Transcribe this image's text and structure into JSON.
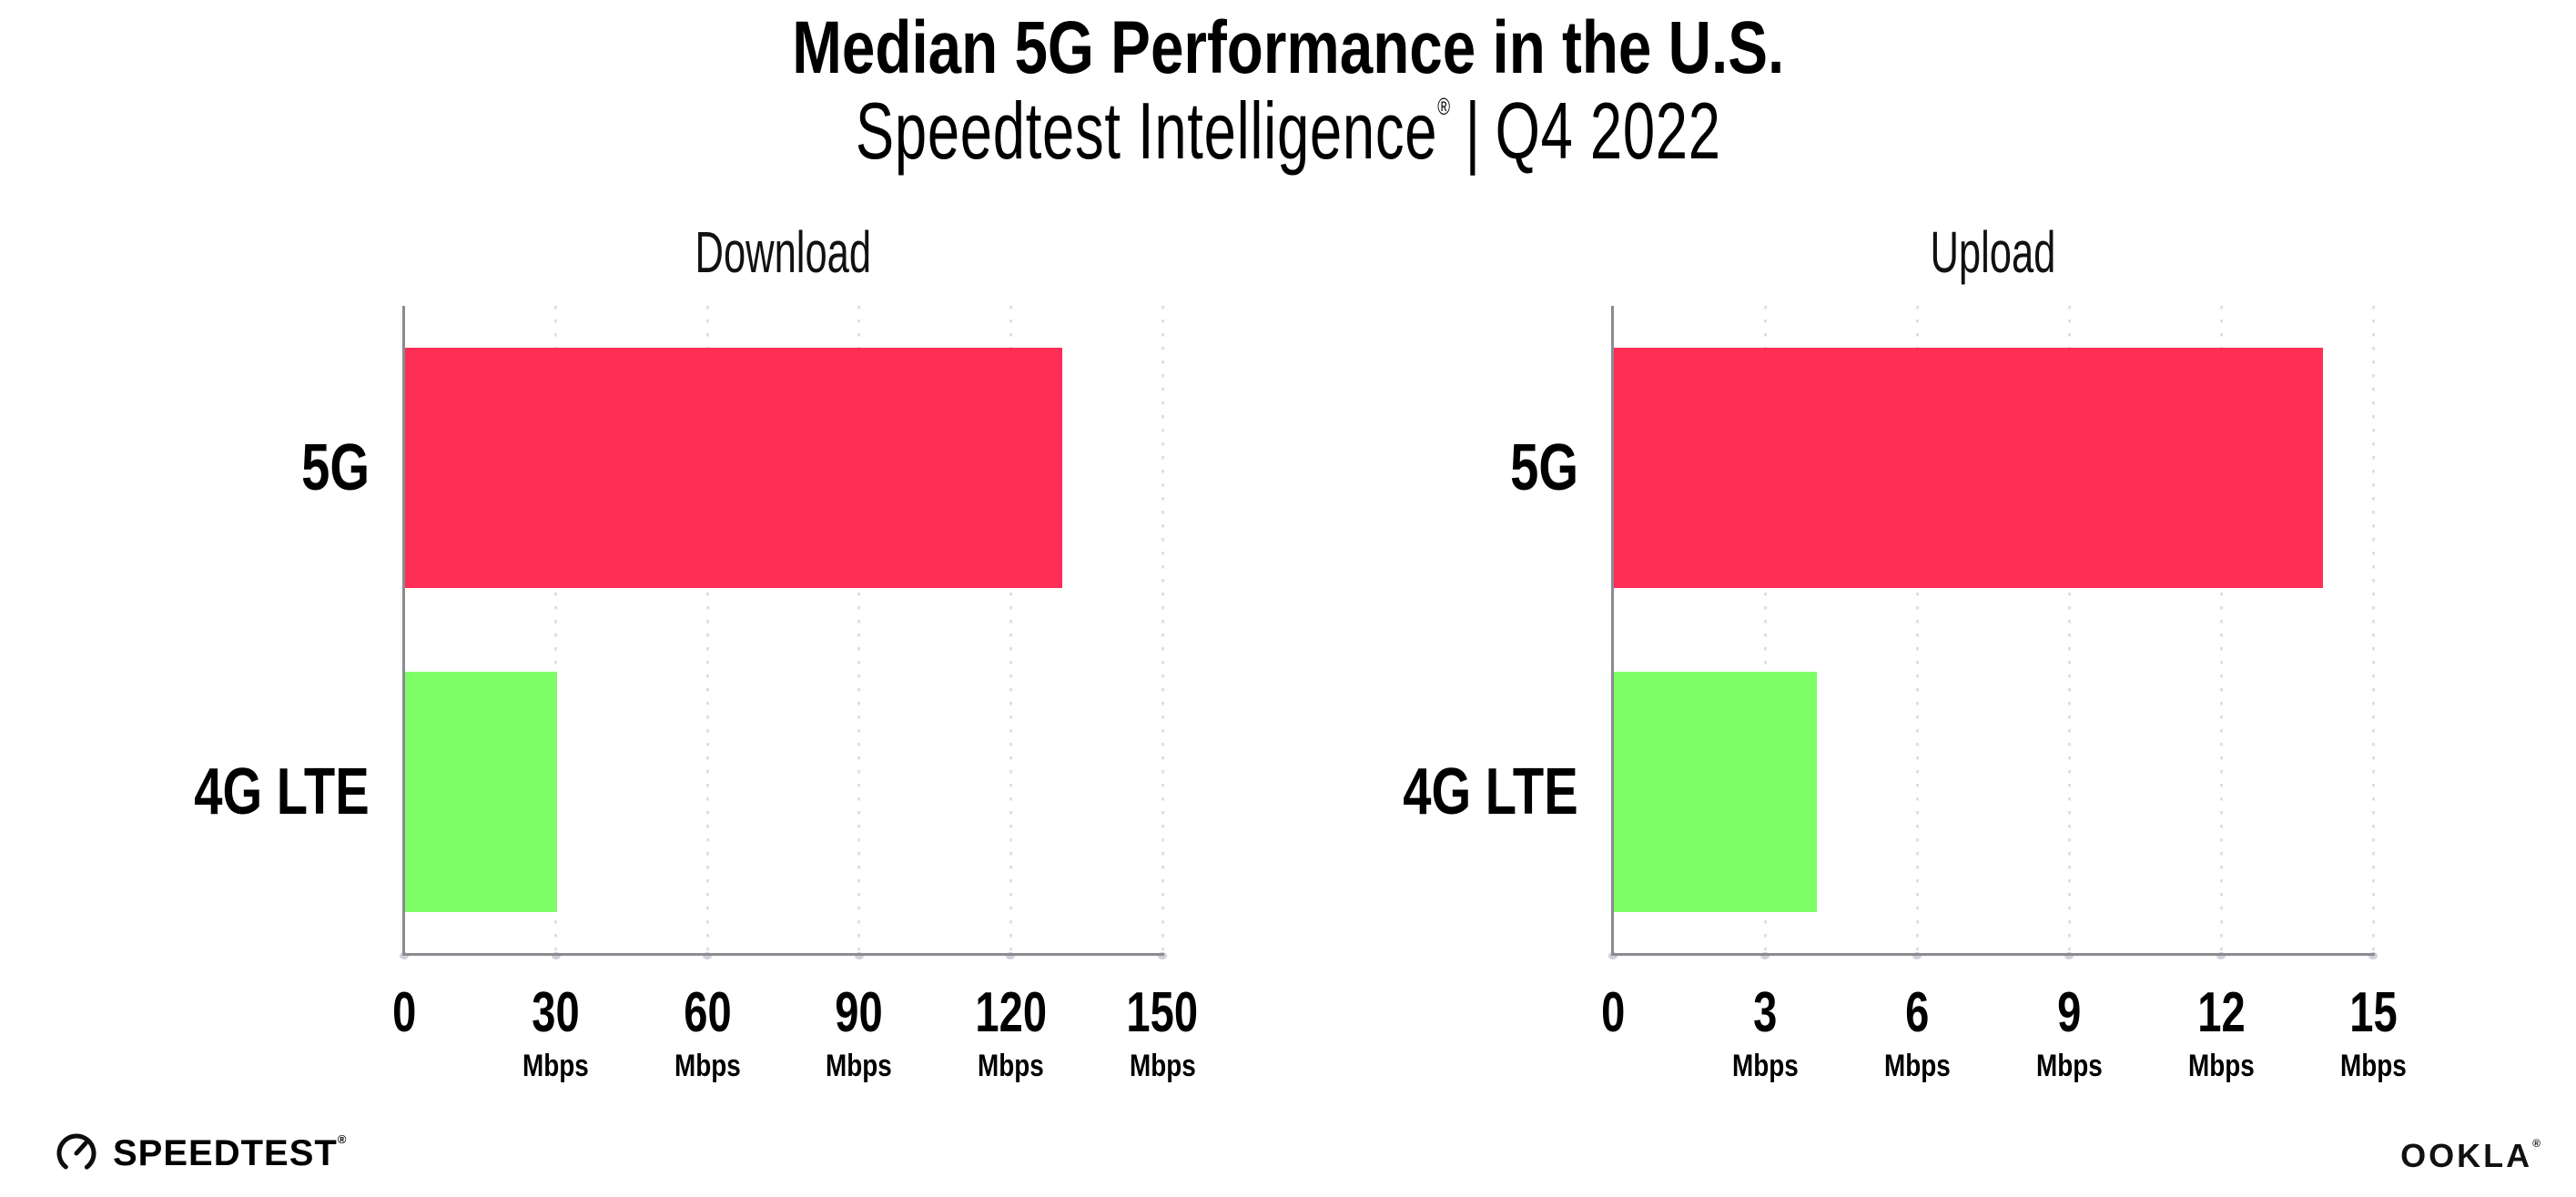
{
  "header": {
    "title": "Median 5G Performance in the U.S.",
    "subtitle_brand": "Speedtest Intelligence",
    "subtitle_reg": "®",
    "subtitle_divider": "|",
    "subtitle_period": "Q4 2022"
  },
  "chart_data": {
    "type": "bar",
    "orientation": "horizontal",
    "unit": "Mbps",
    "legend": "none",
    "grid": "dotted-vertical",
    "panels": [
      {
        "title": "Download",
        "categories": [
          "5G",
          "4G LTE"
        ],
        "values_mbps": [
          130,
          30
        ],
        "xlim": [
          0,
          150
        ],
        "xticks": [
          0,
          30,
          60,
          90,
          120,
          150
        ],
        "tick_unit": "Mbps"
      },
      {
        "title": "Upload",
        "categories": [
          "5G",
          "4G LTE"
        ],
        "values_mbps": [
          14,
          4
        ],
        "xlim": [
          0,
          15
        ],
        "xticks": [
          0,
          3,
          6,
          9,
          12,
          15
        ],
        "tick_unit": "Mbps"
      }
    ],
    "series_colors": {
      "5G": "#FE2E56",
      "4G LTE": "#7DFD66"
    }
  },
  "colors": {
    "bar_5g": "#FE2E56",
    "bar_4g_lte": "#7DFD66",
    "axis": "#8B8B92",
    "gridline": "#DFDFE9",
    "tick_dot": "#C8C8D3",
    "text": "#000000",
    "background": "#FFFFFF"
  },
  "footer": {
    "speedtest_text": "SPEEDTEST",
    "speedtest_reg": "®",
    "ookla_text": "OOKLA",
    "ookla_reg": "®"
  }
}
